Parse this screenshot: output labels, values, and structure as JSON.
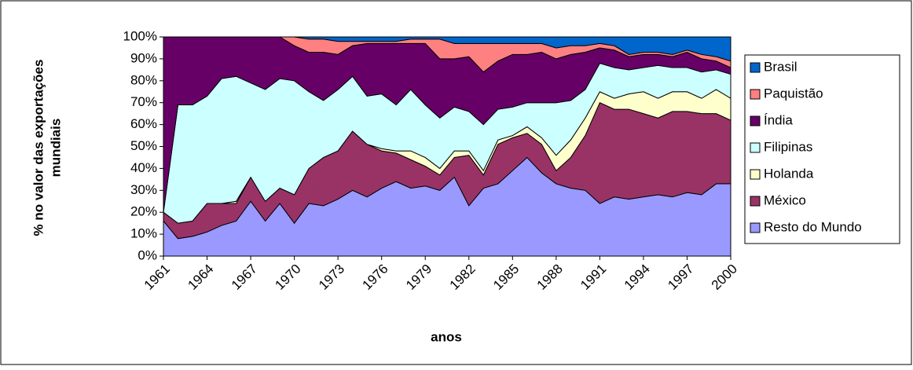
{
  "chart_data": {
    "type": "stacked_area",
    "xlabel": "anos",
    "ylabel": [
      "% no valor das exportações",
      "mundiais"
    ],
    "x": [
      1961,
      1962,
      1963,
      1964,
      1965,
      1966,
      1967,
      1968,
      1969,
      1970,
      1971,
      1972,
      1973,
      1974,
      1975,
      1976,
      1977,
      1978,
      1979,
      1980,
      1981,
      1982,
      1983,
      1984,
      1985,
      1986,
      1987,
      1988,
      1989,
      1990,
      1991,
      1992,
      1993,
      1994,
      1995,
      1996,
      1997,
      1998,
      1999,
      2000
    ],
    "xlim": [
      1961,
      2000
    ],
    "xticks": [
      1961,
      1964,
      1967,
      1970,
      1973,
      1976,
      1979,
      1982,
      1985,
      1988,
      1991,
      1994,
      1997,
      2000
    ],
    "ylim": [
      0,
      100
    ],
    "yticks": [
      {
        "value": 0,
        "label": "0%"
      },
      {
        "value": 10,
        "label": "10%"
      },
      {
        "value": 20,
        "label": "20%"
      },
      {
        "value": 30,
        "label": "30%"
      },
      {
        "value": 40,
        "label": "40%"
      },
      {
        "value": 50,
        "label": "50%"
      },
      {
        "value": 60,
        "label": "60%"
      },
      {
        "value": 70,
        "label": "70%"
      },
      {
        "value": 80,
        "label": "80%"
      },
      {
        "value": 90,
        "label": "90%"
      },
      {
        "value": 100,
        "label": "100%"
      }
    ],
    "legend": "right",
    "series": [
      {
        "name": "Resto do Mundo",
        "color": "#9999ff",
        "values": [
          16,
          8,
          9,
          11,
          14,
          16,
          25,
          16,
          24,
          15,
          24,
          23,
          26,
          30,
          27,
          31,
          34,
          31,
          32,
          30,
          36,
          23,
          31,
          33,
          39,
          45,
          38,
          33,
          31,
          30,
          24,
          27,
          26,
          27,
          28,
          27,
          29,
          28,
          33,
          33
        ]
      },
      {
        "name": "México",
        "color": "#993366",
        "values": [
          4,
          7,
          7,
          13,
          10,
          8,
          11,
          9,
          7,
          13,
          16,
          22,
          22,
          27,
          24,
          17,
          13,
          13,
          9,
          7,
          9,
          23,
          6,
          18,
          15,
          11,
          13,
          6,
          14,
          25,
          46,
          40,
          41,
          38,
          35,
          39,
          37,
          37,
          32,
          29
        ]
      },
      {
        "name": "Holanda",
        "color": "#ffffcc",
        "values": [
          0,
          0,
          0,
          0,
          0,
          1,
          0,
          0,
          0,
          0,
          0,
          0,
          0,
          0,
          0,
          1,
          1,
          4,
          4,
          3,
          3,
          2,
          2,
          2,
          1,
          3,
          3,
          7,
          8,
          8,
          5,
          5,
          7,
          10,
          9,
          9,
          9,
          7,
          11,
          10
        ]
      },
      {
        "name": "Filipinas",
        "color": "#ccffff",
        "values": [
          0,
          54,
          53,
          49,
          57,
          57,
          43,
          51,
          50,
          52,
          35,
          26,
          28,
          25,
          22,
          25,
          21,
          28,
          24,
          23,
          20,
          18,
          21,
          14,
          13,
          11,
          16,
          24,
          18,
          13,
          13,
          14,
          11,
          11,
          15,
          11,
          11,
          12,
          9,
          11
        ]
      },
      {
        "name": "Índia",
        "color": "#660066",
        "values": [
          80,
          31,
          31,
          27,
          19,
          18,
          21,
          24,
          19,
          16,
          18,
          22,
          16,
          14,
          24,
          23,
          28,
          21,
          28,
          27,
          22,
          25,
          24,
          22,
          24,
          22,
          23,
          20,
          21,
          17,
          7,
          8,
          6,
          6,
          5,
          5,
          7,
          6,
          4,
          3
        ]
      },
      {
        "name": "Paquistão",
        "color": "#ff8080",
        "values": [
          0,
          0,
          0,
          0,
          0,
          0,
          0,
          0,
          0,
          4,
          6,
          6,
          6,
          2,
          1,
          1,
          1,
          2,
          2,
          9,
          7,
          6,
          13,
          8,
          5,
          5,
          4,
          5,
          4,
          3,
          2,
          2,
          1,
          1,
          1,
          1,
          1,
          2,
          2,
          3
        ]
      },
      {
        "name": "Brasil",
        "color": "#0066cc",
        "values": [
          0,
          0,
          0,
          0,
          0,
          0,
          0,
          0,
          0,
          0,
          1,
          1,
          2,
          2,
          2,
          2,
          2,
          1,
          1,
          1,
          3,
          3,
          3,
          3,
          3,
          3,
          3,
          5,
          4,
          4,
          3,
          4,
          8,
          7,
          7,
          8,
          6,
          8,
          9,
          11
        ]
      }
    ]
  }
}
